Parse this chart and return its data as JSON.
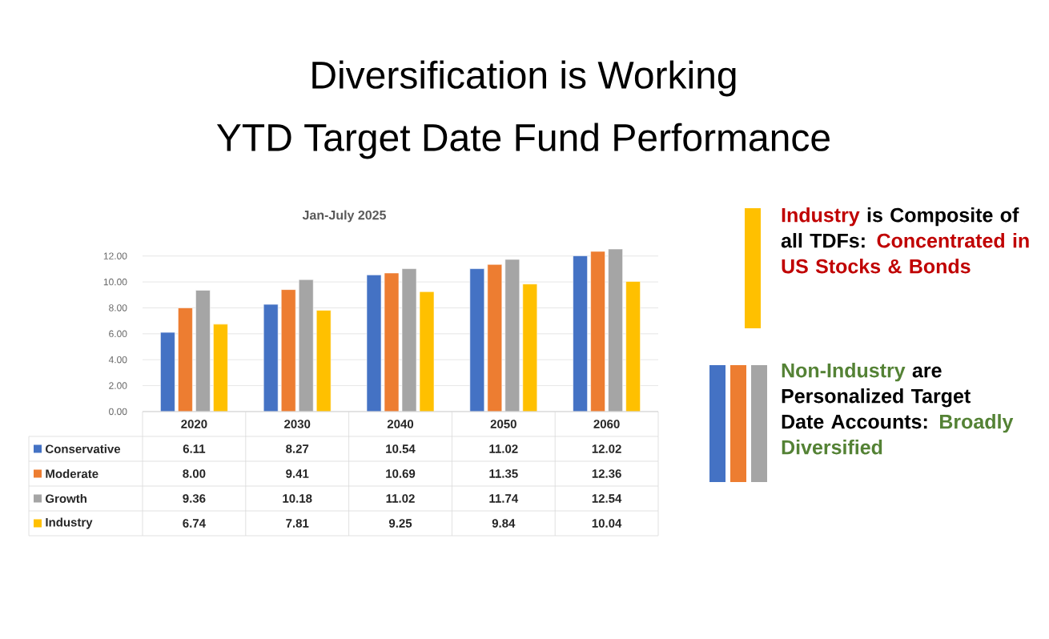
{
  "chart_data": {
    "type": "bar",
    "title": "Diversification is Working",
    "subtitle": "YTD Target Date Fund Performance",
    "annotations": [
      "Jan-July 2025",
      "Industry",
      " is Composite of all TDFs:",
      "Concentrated in US Stocks & Bonds",
      "Non-Industry",
      " are Personalized Target Date Accounts:",
      "Broadly Diversified"
    ],
    "categories": [
      "2020",
      "2030",
      "2040",
      "2050",
      "2060"
    ],
    "series": [
      {
        "name": "Conservative",
        "color": "#4472c4",
        "values": [
          6.11,
          8.27,
          10.54,
          11.02,
          12.02
        ],
        "value_labels": [
          "6.11",
          "8.27",
          "10.54",
          "11.02",
          "12.02"
        ]
      },
      {
        "name": "Moderate",
        "color": "#ed7d31",
        "values": [
          8.0,
          9.41,
          10.69,
          11.35,
          12.36
        ],
        "value_labels": [
          "8.00",
          "9.41",
          "10.69",
          "11.35",
          "12.36"
        ]
      },
      {
        "name": "Growth",
        "color": "#a5a5a5",
        "values": [
          9.36,
          10.18,
          11.02,
          11.74,
          12.54
        ],
        "value_labels": [
          "9.36",
          "10.18",
          "11.02",
          "11.74",
          "12.54"
        ]
      },
      {
        "name": "Industry",
        "color": "#ffc000",
        "values": [
          6.74,
          7.81,
          9.25,
          9.84,
          10.04
        ],
        "value_labels": [
          "6.74",
          "7.81",
          "9.25",
          "9.84",
          "10.04"
        ]
      }
    ],
    "ylim": [
      0,
      12.6
    ],
    "yticks": [
      {
        "value": 0,
        "label": "0.00"
      },
      {
        "value": 2,
        "label": "2.00"
      },
      {
        "value": 4,
        "label": "4.00"
      },
      {
        "value": 6,
        "label": "6.00"
      },
      {
        "value": 8,
        "label": "8.00"
      },
      {
        "value": 10,
        "label": "10.00"
      },
      {
        "value": 12,
        "label": "12.00"
      }
    ],
    "grid": "y",
    "legend": "bottom left"
  }
}
